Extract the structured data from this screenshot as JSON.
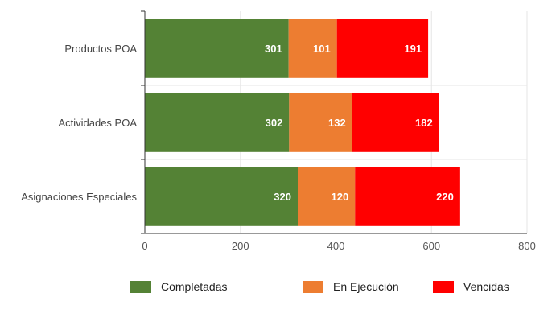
{
  "chart_data": {
    "type": "bar",
    "orientation": "horizontal",
    "stacked": true,
    "categories": [
      "Productos POA",
      "Actividades POA",
      "Asignaciones Especiales"
    ],
    "series": [
      {
        "name": "Completadas",
        "values": [
          301,
          302,
          320
        ],
        "color": "#548235"
      },
      {
        "name": "En Ejecución",
        "values": [
          101,
          132,
          120
        ],
        "color": "#ED7D31"
      },
      {
        "name": "Vencidas",
        "values": [
          191,
          182,
          220
        ],
        "color": "#FF0000"
      }
    ],
    "x_ticks": [
      "0",
      "200",
      "400",
      "600",
      "800"
    ],
    "xlim": [
      0,
      800
    ],
    "grid": true,
    "legend": "bottom"
  }
}
